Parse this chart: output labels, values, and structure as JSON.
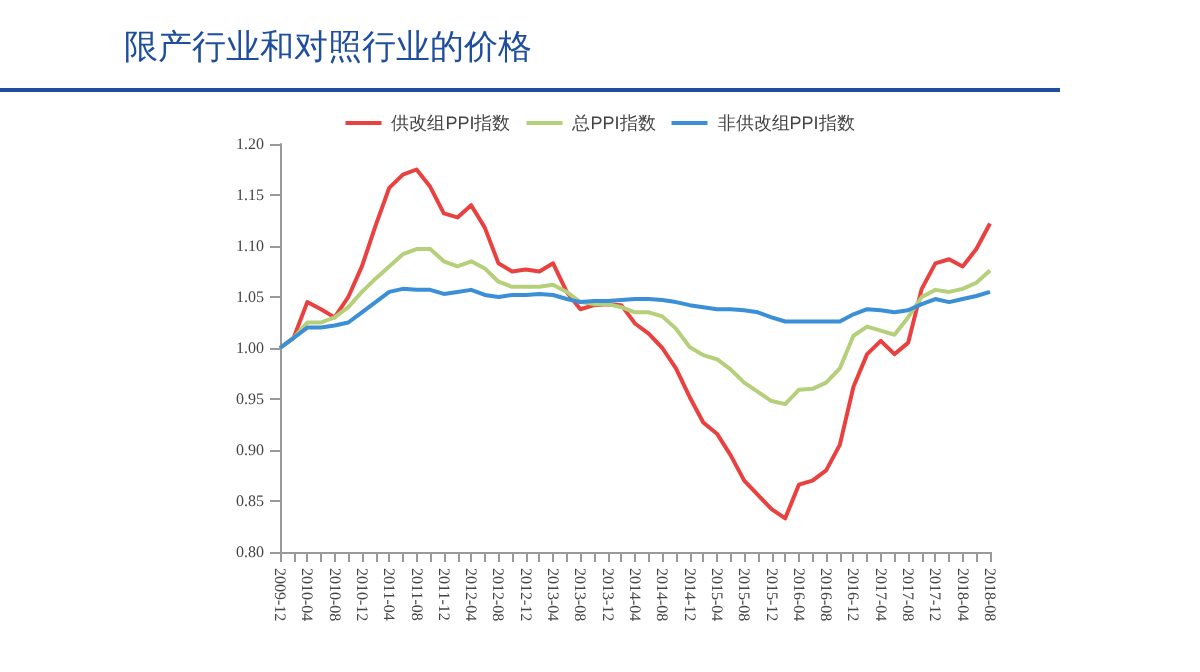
{
  "chart_data": {
    "type": "line",
    "title": "限产行业和对照行业的价格",
    "categories": [
      "2009-12",
      null,
      "2010-04",
      null,
      "2010-08",
      null,
      "2010-12",
      null,
      "2011-04",
      null,
      "2011-08",
      null,
      "2011-12",
      null,
      "2012-04",
      null,
      "2012-08",
      null,
      "2012-12",
      null,
      "2013-04",
      null,
      "2013-08",
      null,
      "2013-12",
      null,
      "2014-04",
      null,
      "2014-08",
      null,
      "2014-12",
      null,
      "2015-04",
      null,
      "2015-08",
      null,
      "2015-12",
      null,
      "2016-04",
      null,
      "2016-08",
      null,
      "2016-12",
      null,
      "2017-04",
      null,
      "2017-08",
      null,
      "2017-12",
      null,
      "2018-04",
      null,
      "2018-08"
    ],
    "series": [
      {
        "name": "供改组PPI指数",
        "color": "#e8413f",
        "values": [
          1.0,
          1.01,
          1.045,
          1.038,
          1.03,
          1.05,
          1.08,
          1.12,
          1.157,
          1.17,
          1.175,
          1.158,
          1.132,
          1.128,
          1.14,
          1.118,
          1.083,
          1.075,
          1.077,
          1.075,
          1.083,
          1.055,
          1.038,
          1.042,
          1.043,
          1.042,
          1.024,
          1.014,
          1.0,
          0.98,
          0.952,
          0.927,
          0.916,
          0.895,
          0.87,
          0.856,
          0.842,
          0.833,
          0.866,
          0.87,
          0.88,
          0.905,
          0.962,
          0.994,
          1.007,
          0.994,
          1.005,
          1.058,
          1.083,
          1.087,
          1.08,
          1.097,
          1.122
        ]
      },
      {
        "name": "总PPI指数",
        "color": "#b5cf7a",
        "values": [
          1.0,
          1.01,
          1.025,
          1.025,
          1.03,
          1.04,
          1.055,
          1.068,
          1.08,
          1.092,
          1.097,
          1.097,
          1.085,
          1.08,
          1.085,
          1.078,
          1.065,
          1.06,
          1.06,
          1.06,
          1.062,
          1.055,
          1.045,
          1.043,
          1.043,
          1.04,
          1.035,
          1.035,
          1.031,
          1.019,
          1.001,
          0.993,
          0.989,
          0.979,
          0.966,
          0.957,
          0.948,
          0.945,
          0.959,
          0.96,
          0.966,
          0.98,
          1.012,
          1.021,
          1.017,
          1.013,
          1.03,
          1.05,
          1.057,
          1.055,
          1.058,
          1.064,
          1.076
        ]
      },
      {
        "name": "非供改组PPI指数",
        "color": "#3a8fd6",
        "values": [
          1.0,
          1.01,
          1.02,
          1.02,
          1.022,
          1.025,
          1.035,
          1.045,
          1.055,
          1.058,
          1.057,
          1.057,
          1.053,
          1.055,
          1.057,
          1.052,
          1.05,
          1.052,
          1.052,
          1.053,
          1.052,
          1.048,
          1.045,
          1.046,
          1.046,
          1.047,
          1.048,
          1.048,
          1.047,
          1.045,
          1.042,
          1.04,
          1.038,
          1.038,
          1.037,
          1.035,
          1.03,
          1.026,
          1.026,
          1.026,
          1.026,
          1.026,
          1.033,
          1.038,
          1.037,
          1.035,
          1.037,
          1.043,
          1.048,
          1.045,
          1.048,
          1.051,
          1.055
        ]
      }
    ],
    "ylim": [
      0.8,
      1.2
    ],
    "yticks": [
      {
        "value": 0.8,
        "label": "0.80"
      },
      {
        "value": 0.85,
        "label": "0.85"
      },
      {
        "value": 0.9,
        "label": "0.90"
      },
      {
        "value": 0.95,
        "label": "0.95"
      },
      {
        "value": 1.0,
        "label": "1.00"
      },
      {
        "value": 1.05,
        "label": "1.05"
      },
      {
        "value": 1.1,
        "label": "1.10"
      },
      {
        "value": 1.15,
        "label": "1.15"
      },
      {
        "value": 1.2,
        "label": "1.20"
      }
    ],
    "grid": false,
    "legend": "top",
    "marker": "none",
    "line_style": "solid"
  }
}
